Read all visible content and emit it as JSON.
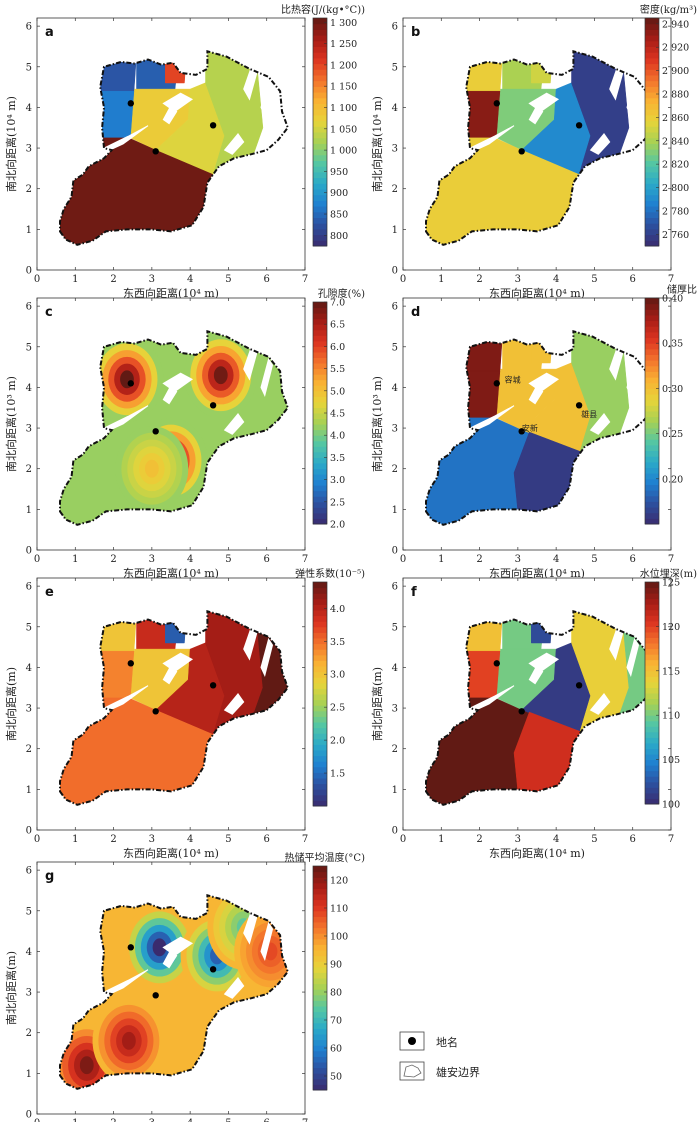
{
  "chart_data": [
    {
      "type": "heatmap",
      "panel": "a",
      "colorbar_label": "比热容(J/(kg•°C))",
      "colorbar_range": [
        775,
        1310
      ],
      "colorbar_ticks": [
        "1 300",
        "1 250",
        "1 200",
        "1 150",
        "1 100",
        "1 050",
        "1 000",
        "950",
        "900",
        "850",
        "800"
      ],
      "colorbar_tick_values": [
        1300,
        1250,
        1200,
        1150,
        1100,
        1050,
        1000,
        950,
        900,
        850,
        800
      ],
      "xlabel": "东西向距离(10⁴ m)",
      "ylabel": "南北向距离(10⁴ m)",
      "xlim": [
        0,
        7
      ],
      "ylim": [
        0,
        6.2
      ],
      "xticks": [
        "0",
        "1",
        "2",
        "3",
        "4",
        "5",
        "6",
        "7"
      ],
      "yticks": [
        "0",
        "1",
        "2",
        "3",
        "4",
        "5",
        "6"
      ],
      "zones": [
        {
          "name": "northwest",
          "value": 830
        },
        {
          "name": "north-center",
          "value": 840
        },
        {
          "name": "north-notch",
          "value": 1200
        },
        {
          "name": "center-west",
          "value": 870
        },
        {
          "name": "center",
          "value": 1080
        },
        {
          "name": "center-east",
          "value": 1060
        },
        {
          "name": "east",
          "value": 1030
        },
        {
          "name": "south",
          "value": 1300
        }
      ]
    },
    {
      "type": "heatmap",
      "panel": "b",
      "colorbar_label": "密度(kg/m³)",
      "colorbar_range": [
        2750,
        2945
      ],
      "colorbar_ticks": [
        "2 940",
        "2 920",
        "2 900",
        "2 880",
        "2 860",
        "2 840",
        "2 820",
        "2 800",
        "2 780",
        "2 760"
      ],
      "colorbar_tick_values": [
        2940,
        2920,
        2900,
        2880,
        2860,
        2840,
        2820,
        2800,
        2780,
        2760
      ],
      "xlabel": "东西向距离(10⁴ m)",
      "ylabel": "南北向距离(10⁴ m)",
      "xlim": [
        0,
        7
      ],
      "ylim": [
        0,
        6.2
      ],
      "xticks": [
        "0",
        "1",
        "2",
        "3",
        "4",
        "5",
        "6",
        "7"
      ],
      "yticks": [
        "0",
        "1",
        "2",
        "3",
        "4",
        "5",
        "6"
      ],
      "zones": [
        {
          "name": "northwest",
          "value": 2860
        },
        {
          "name": "north-center",
          "value": 2840
        },
        {
          "name": "north-notch",
          "value": 2850
        },
        {
          "name": "center-west",
          "value": 2935
        },
        {
          "name": "center",
          "value": 2830
        },
        {
          "name": "center-east",
          "value": 2790
        },
        {
          "name": "east",
          "value": 2760
        },
        {
          "name": "south",
          "value": 2860
        }
      ]
    },
    {
      "type": "heatmap",
      "panel": "c",
      "colorbar_label": "孔隙度(%)",
      "colorbar_range": [
        2.0,
        7.0
      ],
      "colorbar_ticks": [
        "7.0",
        "6.5",
        "6.0",
        "5.5",
        "5.0",
        "4.5",
        "4.0",
        "3.5",
        "3.0",
        "2.5",
        "2.0"
      ],
      "colorbar_tick_values": [
        7.0,
        6.5,
        6.0,
        5.5,
        5.0,
        4.5,
        4.0,
        3.5,
        3.0,
        2.5,
        2.0
      ],
      "xlabel": "东西向距离(10⁴ m)",
      "ylabel": "南北向距离(10³ m)",
      "xlim": [
        0,
        7
      ],
      "ylim": [
        0,
        6.2
      ],
      "xticks": [
        "0",
        "1",
        "2",
        "3",
        "4",
        "5",
        "6",
        "7"
      ],
      "yticks": [
        "0",
        "1",
        "2",
        "3",
        "4",
        "5",
        "6"
      ],
      "background_value": 4.2,
      "hotspots": [
        {
          "x": 2.35,
          "y": 4.2,
          "value": 7.0
        },
        {
          "x": 4.8,
          "y": 4.3,
          "value": 6.9
        },
        {
          "x": 3.5,
          "y": 2.2,
          "value": 7.0
        },
        {
          "x": 3.0,
          "y": 2.0,
          "value": 5.0
        }
      ]
    },
    {
      "type": "heatmap",
      "panel": "d",
      "colorbar_label": "储厚比",
      "colorbar_range": [
        0.15,
        0.4
      ],
      "colorbar_ticks": [
        "0.40",
        "0.35",
        "0.30",
        "0.25",
        "0.20"
      ],
      "colorbar_tick_values": [
        0.4,
        0.35,
        0.3,
        0.25,
        0.2
      ],
      "xlabel": "东西向距离(10⁴ m)",
      "ylabel": "南北向距离(10³ m)",
      "xlim": [
        0,
        7
      ],
      "ylim": [
        0,
        6.2
      ],
      "xticks": [
        "0",
        "1",
        "2",
        "3",
        "4",
        "5",
        "6",
        "7"
      ],
      "yticks": [
        "0",
        "1",
        "2",
        "3",
        "4",
        "5",
        "6"
      ],
      "zones": [
        {
          "name": "northwest",
          "value": 0.39
        },
        {
          "name": "north-center",
          "value": 0.3
        },
        {
          "name": "north-notch",
          "value": 0.3
        },
        {
          "name": "center-west",
          "value": 0.39
        },
        {
          "name": "center",
          "value": 0.3
        },
        {
          "name": "center-east",
          "value": 0.3
        },
        {
          "name": "east",
          "value": 0.26
        },
        {
          "name": "south",
          "value": 0.19
        },
        {
          "name": "south-east",
          "value": 0.16
        }
      ],
      "place_labels": [
        {
          "text": "容城",
          "x": 2.55,
          "y": 4.2
        },
        {
          "text": "安新",
          "x": 3.0,
          "y": 3.0
        },
        {
          "text": "雄县",
          "x": 4.55,
          "y": 3.35
        }
      ]
    },
    {
      "type": "heatmap",
      "panel": "e",
      "colorbar_label": "弹性系数(10⁻⁵)",
      "colorbar_range": [
        1.0,
        4.4
      ],
      "colorbar_ticks": [
        "4.0",
        "3.5",
        "3.0",
        "2.5",
        "2.0",
        "1.5"
      ],
      "colorbar_tick_values": [
        4.0,
        3.5,
        3.0,
        2.5,
        2.0,
        1.5
      ],
      "xlabel": "东西向距离(10⁴ m)",
      "ylabel": "南北向距离(m)",
      "xlim": [
        0,
        7
      ],
      "ylim": [
        0,
        6.2
      ],
      "xticks": [
        "0",
        "1",
        "2",
        "3",
        "4",
        "5",
        "6",
        "7"
      ],
      "yticks": [
        "0",
        "1",
        "2",
        "3",
        "4",
        "5",
        "6"
      ],
      "zones": [
        {
          "name": "northwest",
          "value": 3.0
        },
        {
          "name": "north-center",
          "value": 3.9
        },
        {
          "name": "north-notch",
          "value": 1.4
        },
        {
          "name": "center-west",
          "value": 3.4
        },
        {
          "name": "center",
          "value": 3.0
        },
        {
          "name": "center-east",
          "value": 4.0
        },
        {
          "name": "east",
          "value": 4.1
        },
        {
          "name": "far-east",
          "value": 4.4
        },
        {
          "name": "south",
          "value": 3.5
        }
      ]
    },
    {
      "type": "heatmap",
      "panel": "f",
      "colorbar_label": "水位埋深(m)",
      "colorbar_range": [
        100,
        125
      ],
      "colorbar_ticks": [
        "125",
        "120",
        "115",
        "110",
        "105",
        "100"
      ],
      "colorbar_tick_values": [
        125,
        120,
        115,
        110,
        105,
        100
      ],
      "xlabel": "东西向距离(10⁴ m)",
      "ylabel": "南北向距离(m)",
      "xlim": [
        0,
        7
      ],
      "ylim": [
        0,
        6.2
      ],
      "xticks": [
        "0",
        "1",
        "2",
        "3",
        "4",
        "5",
        "6",
        "7"
      ],
      "yticks": [
        "0",
        "1",
        "2",
        "3",
        "4",
        "5",
        "6"
      ],
      "zones": [
        {
          "name": "northwest",
          "value": 115
        },
        {
          "name": "north-center",
          "value": 110
        },
        {
          "name": "north-notch",
          "value": 102
        },
        {
          "name": "center-west",
          "value": 120
        },
        {
          "name": "center",
          "value": 110
        },
        {
          "name": "center-east",
          "value": 101
        },
        {
          "name": "east",
          "value": 114
        },
        {
          "name": "far-east",
          "value": 110
        },
        {
          "name": "south",
          "value": 125
        },
        {
          "name": "south-east",
          "value": 121
        }
      ]
    },
    {
      "type": "heatmap",
      "panel": "g",
      "colorbar_label": "热储平均温度(°C)",
      "colorbar_range": [
        45,
        125
      ],
      "colorbar_ticks": [
        "120",
        "110",
        "100",
        "90",
        "80",
        "70",
        "60",
        "50"
      ],
      "colorbar_tick_values": [
        120,
        110,
        100,
        90,
        80,
        70,
        60,
        50
      ],
      "xlabel": "东西向距离(10⁴ m)",
      "ylabel": "南北向距离(m)",
      "xlim": [
        0,
        7
      ],
      "ylim": [
        0,
        6.2
      ],
      "xticks": [
        "0",
        "1",
        "2",
        "3",
        "4",
        "5",
        "6",
        "7"
      ],
      "yticks": [
        "0",
        "1",
        "2",
        "3",
        "4",
        "5",
        "6"
      ],
      "background_value": 95,
      "hotspots": [
        {
          "x": 1.3,
          "y": 1.2,
          "value": 122
        },
        {
          "x": 2.4,
          "y": 1.8,
          "value": 118
        },
        {
          "x": 3.2,
          "y": 4.1,
          "value": 45
        },
        {
          "x": 4.7,
          "y": 3.9,
          "value": 55
        },
        {
          "x": 5.4,
          "y": 4.6,
          "value": 75
        },
        {
          "x": 6.1,
          "y": 4.0,
          "value": 108
        }
      ]
    }
  ],
  "map_points": [
    {
      "x": 2.45,
      "y": 4.1
    },
    {
      "x": 3.1,
      "y": 2.92
    },
    {
      "x": 4.6,
      "y": 3.56
    }
  ],
  "legend": {
    "items": [
      {
        "symbol": "point",
        "label": "地名"
      },
      {
        "symbol": "boundary",
        "label": "雄安边界"
      }
    ]
  },
  "colors": {
    "background": "#ffffff",
    "boundary": "#111111",
    "colormap": [
      "#3a2b6e",
      "#2d4f9e",
      "#1f7fd0",
      "#2aa9c8",
      "#55c6a3",
      "#a6d154",
      "#e6d43a",
      "#f9b233",
      "#f3732c",
      "#dc3420",
      "#a61d16",
      "#611a14"
    ]
  }
}
